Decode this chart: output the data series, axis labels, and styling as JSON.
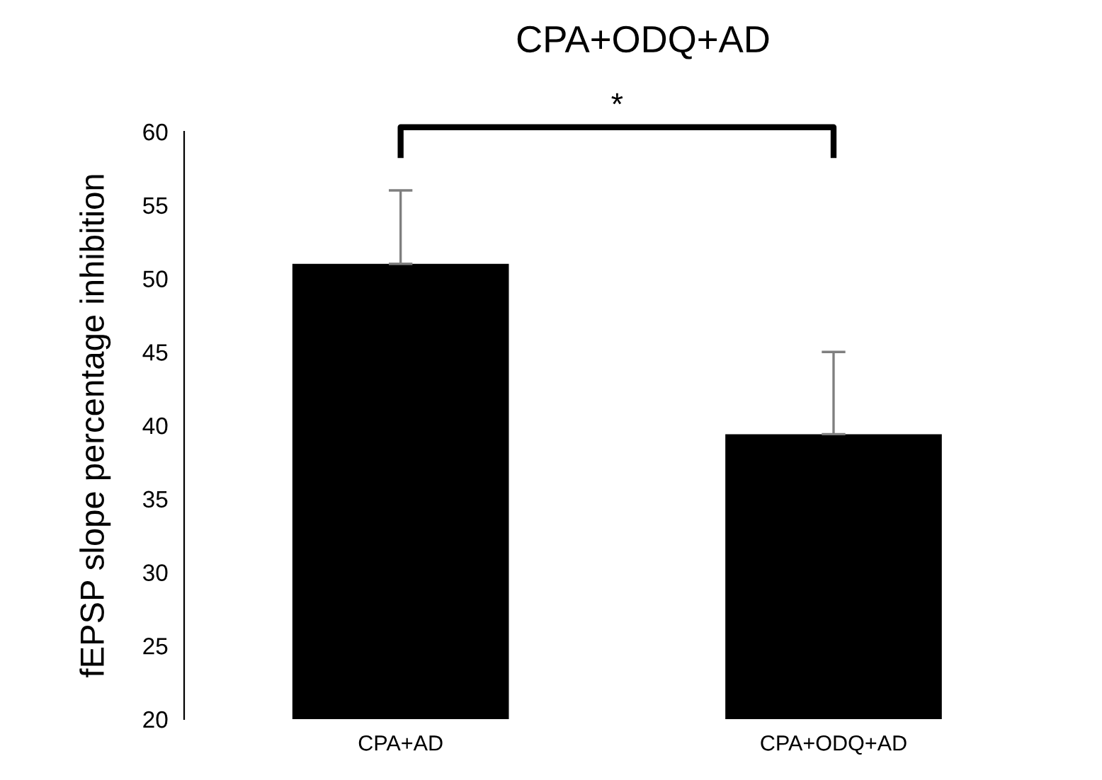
{
  "chart_data": {
    "type": "bar",
    "title": "CPA+ODQ+AD",
    "ylabel": "fEPSP slope percentage inhibition",
    "categories": [
      "CPA+AD",
      "CPA+ODQ+AD"
    ],
    "values": [
      51,
      39.4
    ],
    "color": "#000000",
    "errors": [
      [
        51,
        56
      ],
      [
        39.4,
        45
      ]
    ],
    "ylim": [
      20,
      60
    ],
    "yticks": [
      20,
      25,
      30,
      35,
      40,
      45,
      50,
      55,
      60
    ],
    "annotations": [
      "*"
    ],
    "grid": false,
    "legend": false
  }
}
